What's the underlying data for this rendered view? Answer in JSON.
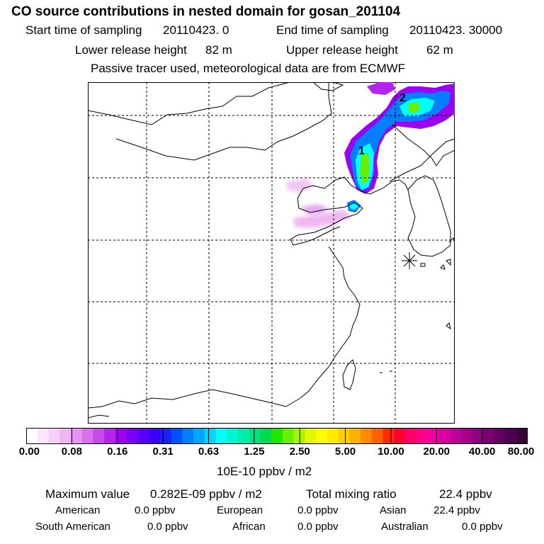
{
  "header": {
    "title": "CO  source contributions in nested domain for gosan_201104",
    "start_label": "Start time of sampling",
    "start_value": "20110423.     0",
    "end_label": "End time of sampling",
    "end_value": "20110423. 30000",
    "lower_label": "Lower release height",
    "lower_value": "82 m",
    "upper_label": "Upper release height",
    "upper_value": "62 m",
    "note": "Passive tracer used, meteorological data are from ECMWF"
  },
  "map": {
    "markers": [
      "1",
      "2"
    ],
    "receptor_symbol": "station-star",
    "colors": {
      "coast": "#000000",
      "grid": "#000000"
    }
  },
  "colorbar": {
    "unit": "10E-10 ppbv / m2",
    "ticks": [
      "0.00",
      "0.08",
      "0.16",
      "0.31",
      "0.63",
      "1.25",
      "2.50",
      "5.00",
      "10.00",
      "20.00",
      "40.00",
      "80.00"
    ],
    "colors": [
      "#ffffff",
      "#fbe6fb",
      "#f7d0f8",
      "#eeb6f4",
      "#e395ef",
      "#d870ec",
      "#c84aea",
      "#b424ec",
      "#9b00f2",
      "#7a00f5",
      "#5a00f7",
      "#3a00fa",
      "#1a20ff",
      "#0050ff",
      "#0080ff",
      "#00a8ff",
      "#00d4ff",
      "#00ffff",
      "#00f5d5",
      "#00ecaa",
      "#00e27f",
      "#00d84e",
      "#22e600",
      "#66f000",
      "#a8f500",
      "#e0f800",
      "#ffff00",
      "#ffea00",
      "#ffd000",
      "#ffb000",
      "#ff8c00",
      "#ff6000",
      "#ff2a00",
      "#ff0030",
      "#ff0066",
      "#ff0088",
      "#f000a0",
      "#d800a0",
      "#c0009a",
      "#a8008c",
      "#900080",
      "#780070",
      "#600060",
      "#4a004e",
      "#3a003c"
    ]
  },
  "stats": {
    "max_label": "Maximum value",
    "max_value": "0.282E-09 ppbv / m2",
    "total_label": "Total mixing ratio",
    "total_value": "22.4 ppbv",
    "american_label": "American",
    "american_value": "0.0 ppbv",
    "european_label": "European",
    "european_value": "0.0 ppbv",
    "asian_label": "Asian",
    "asian_value": "22.4 ppbv",
    "south_american_label": "South American",
    "south_american_value": "0.0 ppbv",
    "african_label": "African",
    "african_value": "0.0 ppbv",
    "australian_label": "Australian",
    "australian_value": "0.0 ppbv"
  }
}
